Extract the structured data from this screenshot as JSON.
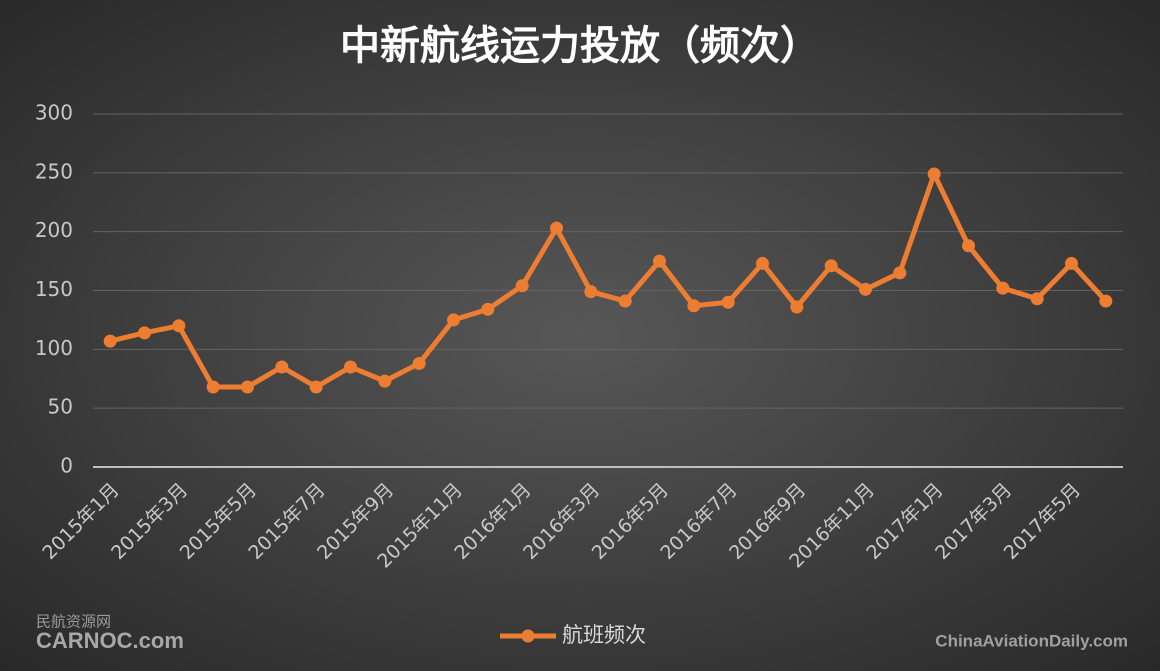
{
  "chart_data": {
    "type": "line",
    "title": "中新航线运力投放（频次）",
    "categories": [
      "2015年1月",
      null,
      "2015年3月",
      null,
      "2015年5月",
      null,
      "2015年7月",
      null,
      "2015年9月",
      null,
      "2015年11月",
      null,
      "2016年1月",
      null,
      "2016年3月",
      null,
      "2016年5月",
      null,
      "2016年7月",
      null,
      "2016年9月",
      null,
      "2016年11月",
      null,
      "2017年1月",
      null,
      "2017年3月",
      null,
      "2017年5月",
      null
    ],
    "series": [
      {
        "name": "航班频次",
        "color": "#ed7d31",
        "values": [
          107,
          114,
          120,
          68,
          68,
          85,
          68,
          85,
          73,
          88,
          125,
          134,
          154,
          203,
          149,
          141,
          175,
          137,
          140,
          173,
          136,
          171,
          151,
          165,
          249,
          188,
          152,
          143,
          173,
          141
        ]
      }
    ],
    "ylim": [
      0,
      300
    ],
    "yticks": [
      0,
      50,
      100,
      150,
      200,
      250,
      300
    ],
    "grid": true,
    "legend": "bottom",
    "watermarks": [
      "民航资源网",
      "CARNOC.com",
      "ChinaAviationDaily.com"
    ]
  }
}
